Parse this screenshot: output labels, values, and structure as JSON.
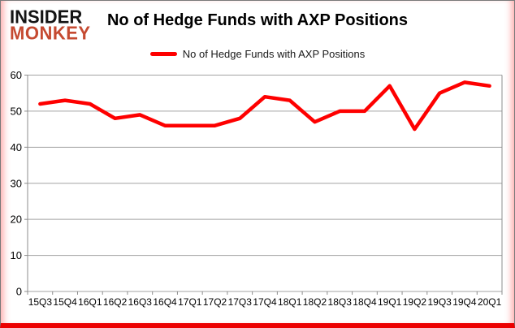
{
  "logo": {
    "line1": "INSIDER",
    "line2": "MONKEY",
    "line2_color": "#c54a31"
  },
  "title": "No of Hedge Funds with AXP Positions",
  "legend": {
    "label": "No of Hedge Funds with AXP Positions",
    "swatch_color": "#fe0000"
  },
  "chart_data": {
    "type": "line",
    "title": "No of Hedge Funds with AXP Positions",
    "series_name": "No of Hedge Funds with AXP Positions",
    "categories": [
      "15Q3",
      "15Q4",
      "16Q1",
      "16Q2",
      "16Q3",
      "16Q4",
      "17Q1",
      "17Q2",
      "17Q3",
      "17Q4",
      "18Q1",
      "18Q2",
      "18Q3",
      "18Q4",
      "19Q1",
      "19Q2",
      "19Q3",
      "19Q4",
      "20Q1"
    ],
    "values": [
      52,
      53,
      52,
      48,
      49,
      46,
      46,
      46,
      48,
      54,
      53,
      47,
      50,
      50,
      57,
      45,
      55,
      58,
      57
    ],
    "xlabel": "",
    "ylabel": "",
    "ylim": [
      0,
      60
    ],
    "yticks": [
      0,
      10,
      20,
      30,
      40,
      50,
      60
    ],
    "grid": true,
    "legend_position": "top-center",
    "line_color": "#fe0000",
    "grid_color": "#a3a3a3",
    "axis_color": "#8c8c8c"
  }
}
